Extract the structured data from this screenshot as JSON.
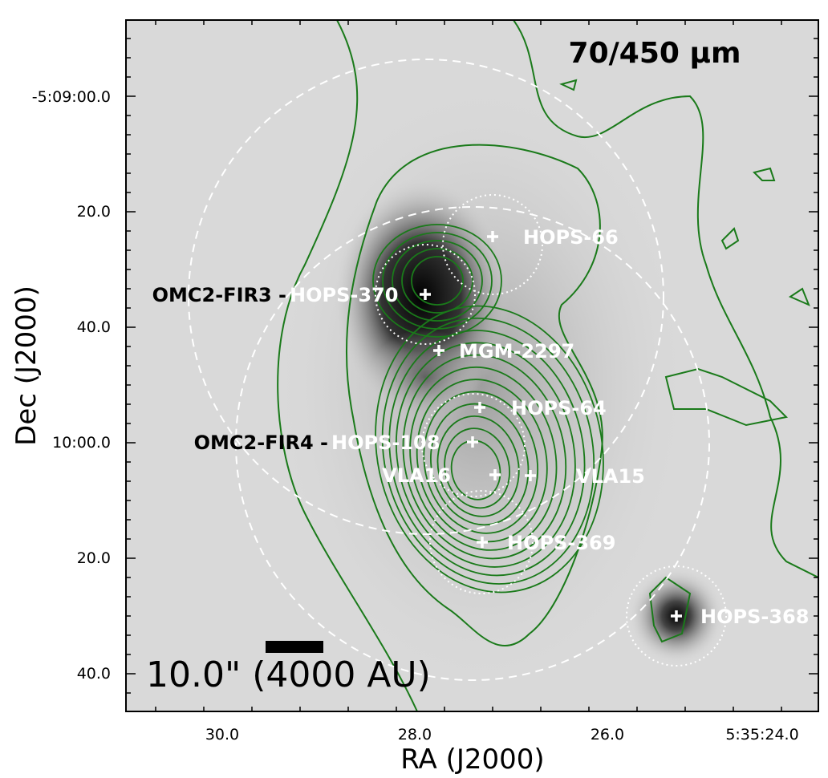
{
  "panel_label": "70/450 μm",
  "x_axis": {
    "label": "RA (J2000)",
    "ticks": [
      "30.0",
      "28.0",
      "26.0",
      "5:35:24.0"
    ]
  },
  "y_axis": {
    "label": "Dec (J2000)",
    "ticks": [
      "-5:09:00.0",
      "20.0",
      "40.0",
      "10:00.0",
      "20.0",
      "40.0"
    ]
  },
  "sources": [
    {
      "name": "HOPS-66"
    },
    {
      "prefix": "OMC2-FIR3 -",
      "name": "HOPS-370"
    },
    {
      "name": "MGM-2297"
    },
    {
      "name": "HOPS-64"
    },
    {
      "prefix": "OMC2-FIR4 -",
      "name": "HOPS-108"
    },
    {
      "name": "VLA16"
    },
    {
      "name": "VLA15"
    },
    {
      "name": "HOPS-369"
    },
    {
      "name": "HOPS-368"
    }
  ],
  "scale_bar": "10.0\" (4000 AU)"
}
